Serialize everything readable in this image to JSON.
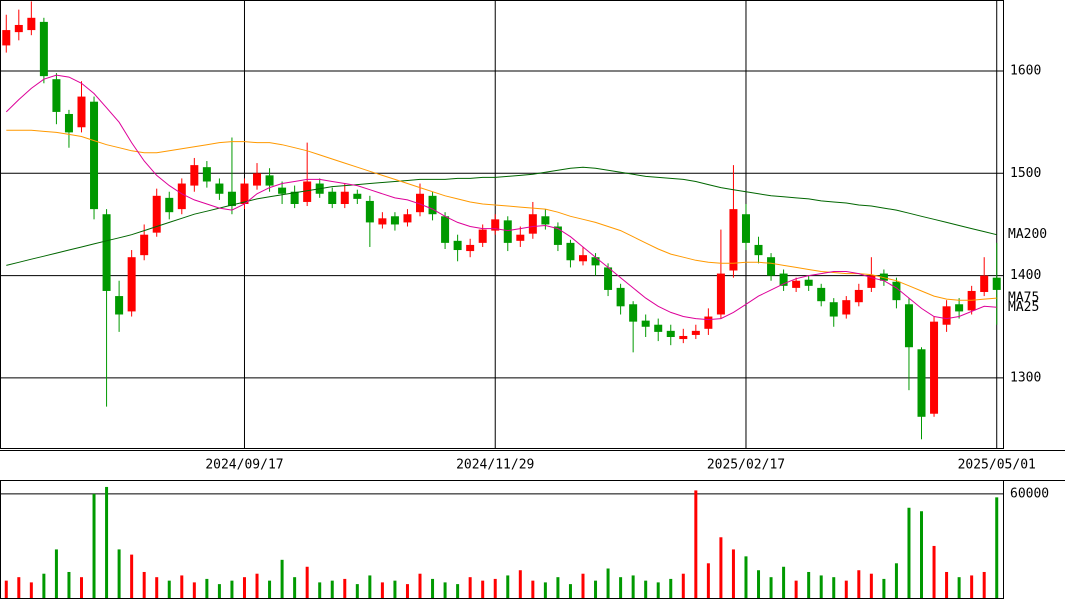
{
  "chart_data": [
    {
      "type": "candlestick",
      "categories": [
        null,
        null,
        null,
        null,
        null,
        null,
        null,
        null,
        null,
        null,
        null,
        null,
        null,
        null,
        null,
        null,
        null,
        null,
        null,
        "2024/09/17",
        null,
        null,
        null,
        null,
        null,
        null,
        null,
        null,
        null,
        null,
        null,
        null,
        null,
        null,
        null,
        null,
        null,
        null,
        null,
        "2024/11/29",
        null,
        null,
        null,
        null,
        null,
        null,
        null,
        null,
        null,
        null,
        null,
        null,
        null,
        null,
        null,
        null,
        null,
        null,
        null,
        "2025/02/17",
        null,
        null,
        null,
        null,
        null,
        null,
        null,
        null,
        null,
        null,
        null,
        null,
        null,
        null,
        null,
        null,
        null,
        null,
        null,
        "2025/05/01"
      ],
      "open": [
        1625,
        1638,
        1640,
        1648,
        1592,
        1558,
        1545,
        1570,
        1460,
        1380,
        1365,
        1420,
        1442,
        1476,
        1465,
        1488,
        1506,
        1490,
        1482,
        1470,
        1488,
        1498,
        1486,
        1482,
        1472,
        1490,
        1482,
        1470,
        1480,
        1473,
        1450,
        1458,
        1452,
        1462,
        1478,
        1458,
        1434,
        1424,
        1432,
        1444,
        1454,
        1434,
        1441,
        1458,
        1448,
        1432,
        1414,
        1418,
        1408,
        1388,
        1372,
        1356,
        1352,
        1346,
        1338,
        1342,
        1348,
        1362,
        1405,
        1460,
        1430,
        1418,
        1402,
        1388,
        1396,
        1388,
        1374,
        1362,
        1374,
        1388,
        1402,
        1394,
        1372,
        1328,
        1265,
        1352,
        1372,
        1366,
        1384,
        1398
      ],
      "high": [
        1655,
        1660,
        1668,
        1652,
        1598,
        1562,
        1590,
        1575,
        1465,
        1395,
        1425,
        1450,
        1485,
        1482,
        1495,
        1515,
        1512,
        1495,
        1535,
        1495,
        1510,
        1505,
        1492,
        1488,
        1530,
        1495,
        1486,
        1490,
        1484,
        1478,
        1462,
        1462,
        1465,
        1490,
        1482,
        1462,
        1440,
        1436,
        1450,
        1460,
        1458,
        1448,
        1472,
        1465,
        1452,
        1435,
        1428,
        1422,
        1412,
        1392,
        1375,
        1362,
        1358,
        1352,
        1348,
        1352,
        1368,
        1445,
        1508,
        1470,
        1438,
        1422,
        1406,
        1398,
        1400,
        1392,
        1378,
        1380,
        1392,
        1418,
        1406,
        1398,
        1378,
        1330,
        1360,
        1376,
        1378,
        1390,
        1418,
        1432
      ],
      "low": [
        1618,
        1630,
        1635,
        1588,
        1548,
        1525,
        1540,
        1455,
        1272,
        1345,
        1360,
        1415,
        1438,
        1455,
        1460,
        1482,
        1486,
        1474,
        1460,
        1465,
        1484,
        1482,
        1470,
        1466,
        1468,
        1476,
        1466,
        1466,
        1470,
        1428,
        1446,
        1444,
        1448,
        1458,
        1454,
        1426,
        1414,
        1418,
        1428,
        1440,
        1424,
        1428,
        1436,
        1445,
        1424,
        1408,
        1410,
        1400,
        1380,
        1362,
        1325,
        1340,
        1336,
        1332,
        1334,
        1338,
        1342,
        1358,
        1398,
        1425,
        1412,
        1395,
        1385,
        1384,
        1385,
        1370,
        1350,
        1358,
        1370,
        1384,
        1390,
        1368,
        1288,
        1240,
        1262,
        1345,
        1358,
        1362,
        1380,
        1352
      ],
      "close": [
        1640,
        1645,
        1652,
        1595,
        1560,
        1540,
        1575,
        1465,
        1385,
        1362,
        1418,
        1440,
        1478,
        1462,
        1490,
        1508,
        1492,
        1480,
        1468,
        1490,
        1500,
        1488,
        1480,
        1470,
        1492,
        1480,
        1470,
        1482,
        1475,
        1452,
        1456,
        1450,
        1460,
        1480,
        1460,
        1432,
        1425,
        1430,
        1445,
        1455,
        1432,
        1440,
        1460,
        1450,
        1430,
        1415,
        1420,
        1410,
        1386,
        1370,
        1355,
        1350,
        1345,
        1340,
        1341,
        1346,
        1360,
        1402,
        1465,
        1432,
        1420,
        1400,
        1390,
        1395,
        1390,
        1375,
        1360,
        1376,
        1386,
        1400,
        1395,
        1376,
        1330,
        1262,
        1355,
        1370,
        1365,
        1385,
        1400,
        1386
      ],
      "up_color": "#ff0000",
      "down_color": "#009900",
      "series": [
        {
          "name": "MA200",
          "color": "#006600",
          "values": [
            1410,
            1413,
            1416,
            1419,
            1422,
            1425,
            1428,
            1431,
            1434,
            1437,
            1440,
            1444,
            1448,
            1452,
            1456,
            1460,
            1463,
            1466,
            1469,
            1472,
            1475,
            1477,
            1479,
            1481,
            1483,
            1485,
            1487,
            1488,
            1489,
            1490,
            1491,
            1492,
            1493,
            1494,
            1494,
            1494,
            1495,
            1495,
            1496,
            1496,
            1497,
            1498,
            1499,
            1501,
            1503,
            1505,
            1506,
            1505,
            1503,
            1501,
            1499,
            1497,
            1496,
            1495,
            1494,
            1492,
            1489,
            1486,
            1484,
            1482,
            1480,
            1478,
            1477,
            1476,
            1475,
            1473,
            1472,
            1471,
            1469,
            1468,
            1466,
            1464,
            1461,
            1458,
            1455,
            1452,
            1449,
            1446,
            1443,
            1440
          ]
        },
        {
          "name": "MA75",
          "color": "#ff9900",
          "values": [
            1542,
            1542,
            1542,
            1541,
            1540,
            1538,
            1536,
            1532,
            1528,
            1525,
            1522,
            1520,
            1520,
            1522,
            1524,
            1526,
            1528,
            1530,
            1531,
            1531,
            1530,
            1530,
            1528,
            1525,
            1522,
            1518,
            1514,
            1510,
            1506,
            1502,
            1498,
            1494,
            1490,
            1486,
            1482,
            1478,
            1475,
            1472,
            1470,
            1469,
            1468,
            1467,
            1466,
            1465,
            1462,
            1458,
            1455,
            1452,
            1448,
            1444,
            1438,
            1432,
            1426,
            1421,
            1418,
            1415,
            1413,
            1412,
            1412,
            1413,
            1413,
            1412,
            1410,
            1408,
            1406,
            1404,
            1403,
            1402,
            1402,
            1401,
            1398,
            1395,
            1390,
            1385,
            1380,
            1377,
            1376,
            1376,
            1377,
            1378
          ]
        },
        {
          "name": "MA25",
          "color": "#dd0099",
          "values": [
            1560,
            1572,
            1583,
            1592,
            1596,
            1594,
            1588,
            1578,
            1564,
            1550,
            1530,
            1512,
            1498,
            1488,
            1480,
            1474,
            1470,
            1466,
            1464,
            1470,
            1480,
            1486,
            1490,
            1492,
            1494,
            1494,
            1492,
            1490,
            1488,
            1484,
            1480,
            1476,
            1474,
            1470,
            1465,
            1458,
            1452,
            1448,
            1446,
            1446,
            1444,
            1446,
            1448,
            1449,
            1446,
            1438,
            1428,
            1418,
            1408,
            1398,
            1388,
            1378,
            1370,
            1364,
            1360,
            1358,
            1357,
            1358,
            1364,
            1372,
            1380,
            1386,
            1392,
            1397,
            1400,
            1402,
            1404,
            1404,
            1402,
            1398,
            1395,
            1388,
            1378,
            1368,
            1360,
            1358,
            1360,
            1365,
            1370,
            1369
          ]
        }
      ],
      "ylim": [
        1231.5,
        1669.4
      ],
      "yticks": [
        1300,
        1400,
        1500,
        1600
      ],
      "grid": true
    },
    {
      "type": "bar",
      "values": [
        10000,
        12000,
        9000,
        14000,
        28000,
        15000,
        12000,
        60000,
        64000,
        28000,
        25000,
        15000,
        12000,
        10000,
        13000,
        9000,
        11000,
        8000,
        10000,
        12000,
        14000,
        10000,
        22000,
        12000,
        18000,
        9000,
        10000,
        11000,
        8000,
        13000,
        9000,
        10000,
        8000,
        14000,
        11000,
        9000,
        8000,
        12000,
        10000,
        11000,
        13000,
        16000,
        10000,
        9000,
        12000,
        8000,
        14000,
        10000,
        17000,
        12000,
        13000,
        10000,
        9000,
        11000,
        14000,
        62000,
        20000,
        35000,
        28000,
        24000,
        16000,
        12000,
        18000,
        10000,
        15000,
        13000,
        12000,
        10000,
        16000,
        14000,
        11000,
        20000,
        52000,
        50000,
        30000,
        15000,
        12000,
        13000,
        15000,
        58000
      ],
      "ylim": [
        0,
        68000
      ],
      "yticks": [
        60000
      ],
      "grid": true
    }
  ]
}
